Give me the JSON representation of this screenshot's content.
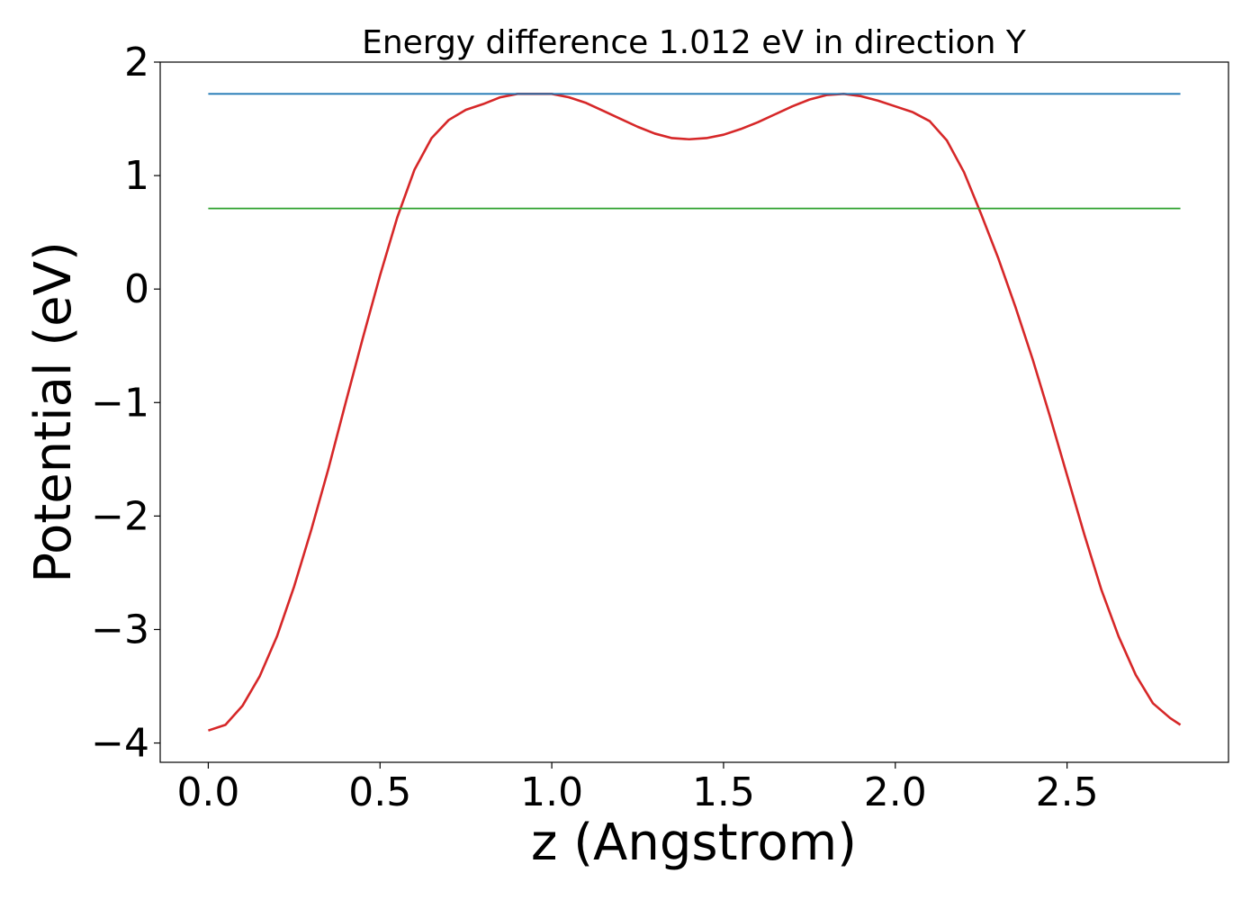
{
  "chart_data": {
    "type": "line",
    "title": "Energy difference 1.012 eV in direction Y",
    "xlabel": "z (Angstrom)",
    "ylabel": "Potential (eV)",
    "xlim": [
      -0.14,
      2.97
    ],
    "ylim": [
      -4.17,
      2.0
    ],
    "x_ticks": [
      0.0,
      0.5,
      1.0,
      1.5,
      2.0,
      2.5
    ],
    "x_tick_labels": [
      "0.0",
      "0.5",
      "1.0",
      "1.5",
      "2.0",
      "2.5"
    ],
    "y_ticks": [
      2,
      1,
      0,
      -1,
      -2,
      -3,
      -4
    ],
    "y_tick_labels": [
      "2",
      "1",
      "0",
      "−1",
      "−2",
      "−3",
      "−4"
    ],
    "grid": false,
    "series": [
      {
        "color": "#d62728",
        "x": [
          0.0,
          0.05,
          0.1,
          0.15,
          0.2,
          0.25,
          0.3,
          0.35,
          0.4,
          0.45,
          0.5,
          0.55,
          0.6,
          0.65,
          0.7,
          0.75,
          0.8,
          0.85,
          0.9,
          0.95,
          1.0,
          1.05,
          1.1,
          1.15,
          1.2,
          1.25,
          1.3,
          1.35,
          1.4,
          1.45,
          1.5,
          1.55,
          1.6,
          1.65,
          1.7,
          1.75,
          1.8,
          1.85,
          1.9,
          1.95,
          2.0,
          2.05,
          2.1,
          2.15,
          2.2,
          2.25,
          2.3,
          2.35,
          2.4,
          2.45,
          2.5,
          2.55,
          2.6,
          2.65,
          2.7,
          2.75,
          2.8,
          2.83
        ],
        "values": [
          -3.89,
          -3.84,
          -3.67,
          -3.41,
          -3.06,
          -2.62,
          -2.12,
          -1.58,
          -1.0,
          -0.43,
          0.12,
          0.63,
          1.05,
          1.33,
          1.49,
          1.58,
          1.63,
          1.69,
          1.72,
          1.72,
          1.72,
          1.69,
          1.64,
          1.57,
          1.5,
          1.43,
          1.37,
          1.33,
          1.32,
          1.33,
          1.36,
          1.41,
          1.47,
          1.54,
          1.61,
          1.67,
          1.71,
          1.72,
          1.7,
          1.66,
          1.61,
          1.56,
          1.48,
          1.31,
          1.03,
          0.66,
          0.27,
          -0.16,
          -0.62,
          -1.12,
          -1.64,
          -2.16,
          -2.65,
          -3.06,
          -3.4,
          -3.65,
          -3.78,
          -3.84
        ]
      },
      {
        "color": "#1f77b4",
        "x": [
          0.0,
          2.83
        ],
        "values": [
          1.72,
          1.72
        ]
      },
      {
        "color": "#2ca02c",
        "x": [
          0.0,
          2.83
        ],
        "values": [
          0.71,
          0.71
        ]
      }
    ]
  }
}
